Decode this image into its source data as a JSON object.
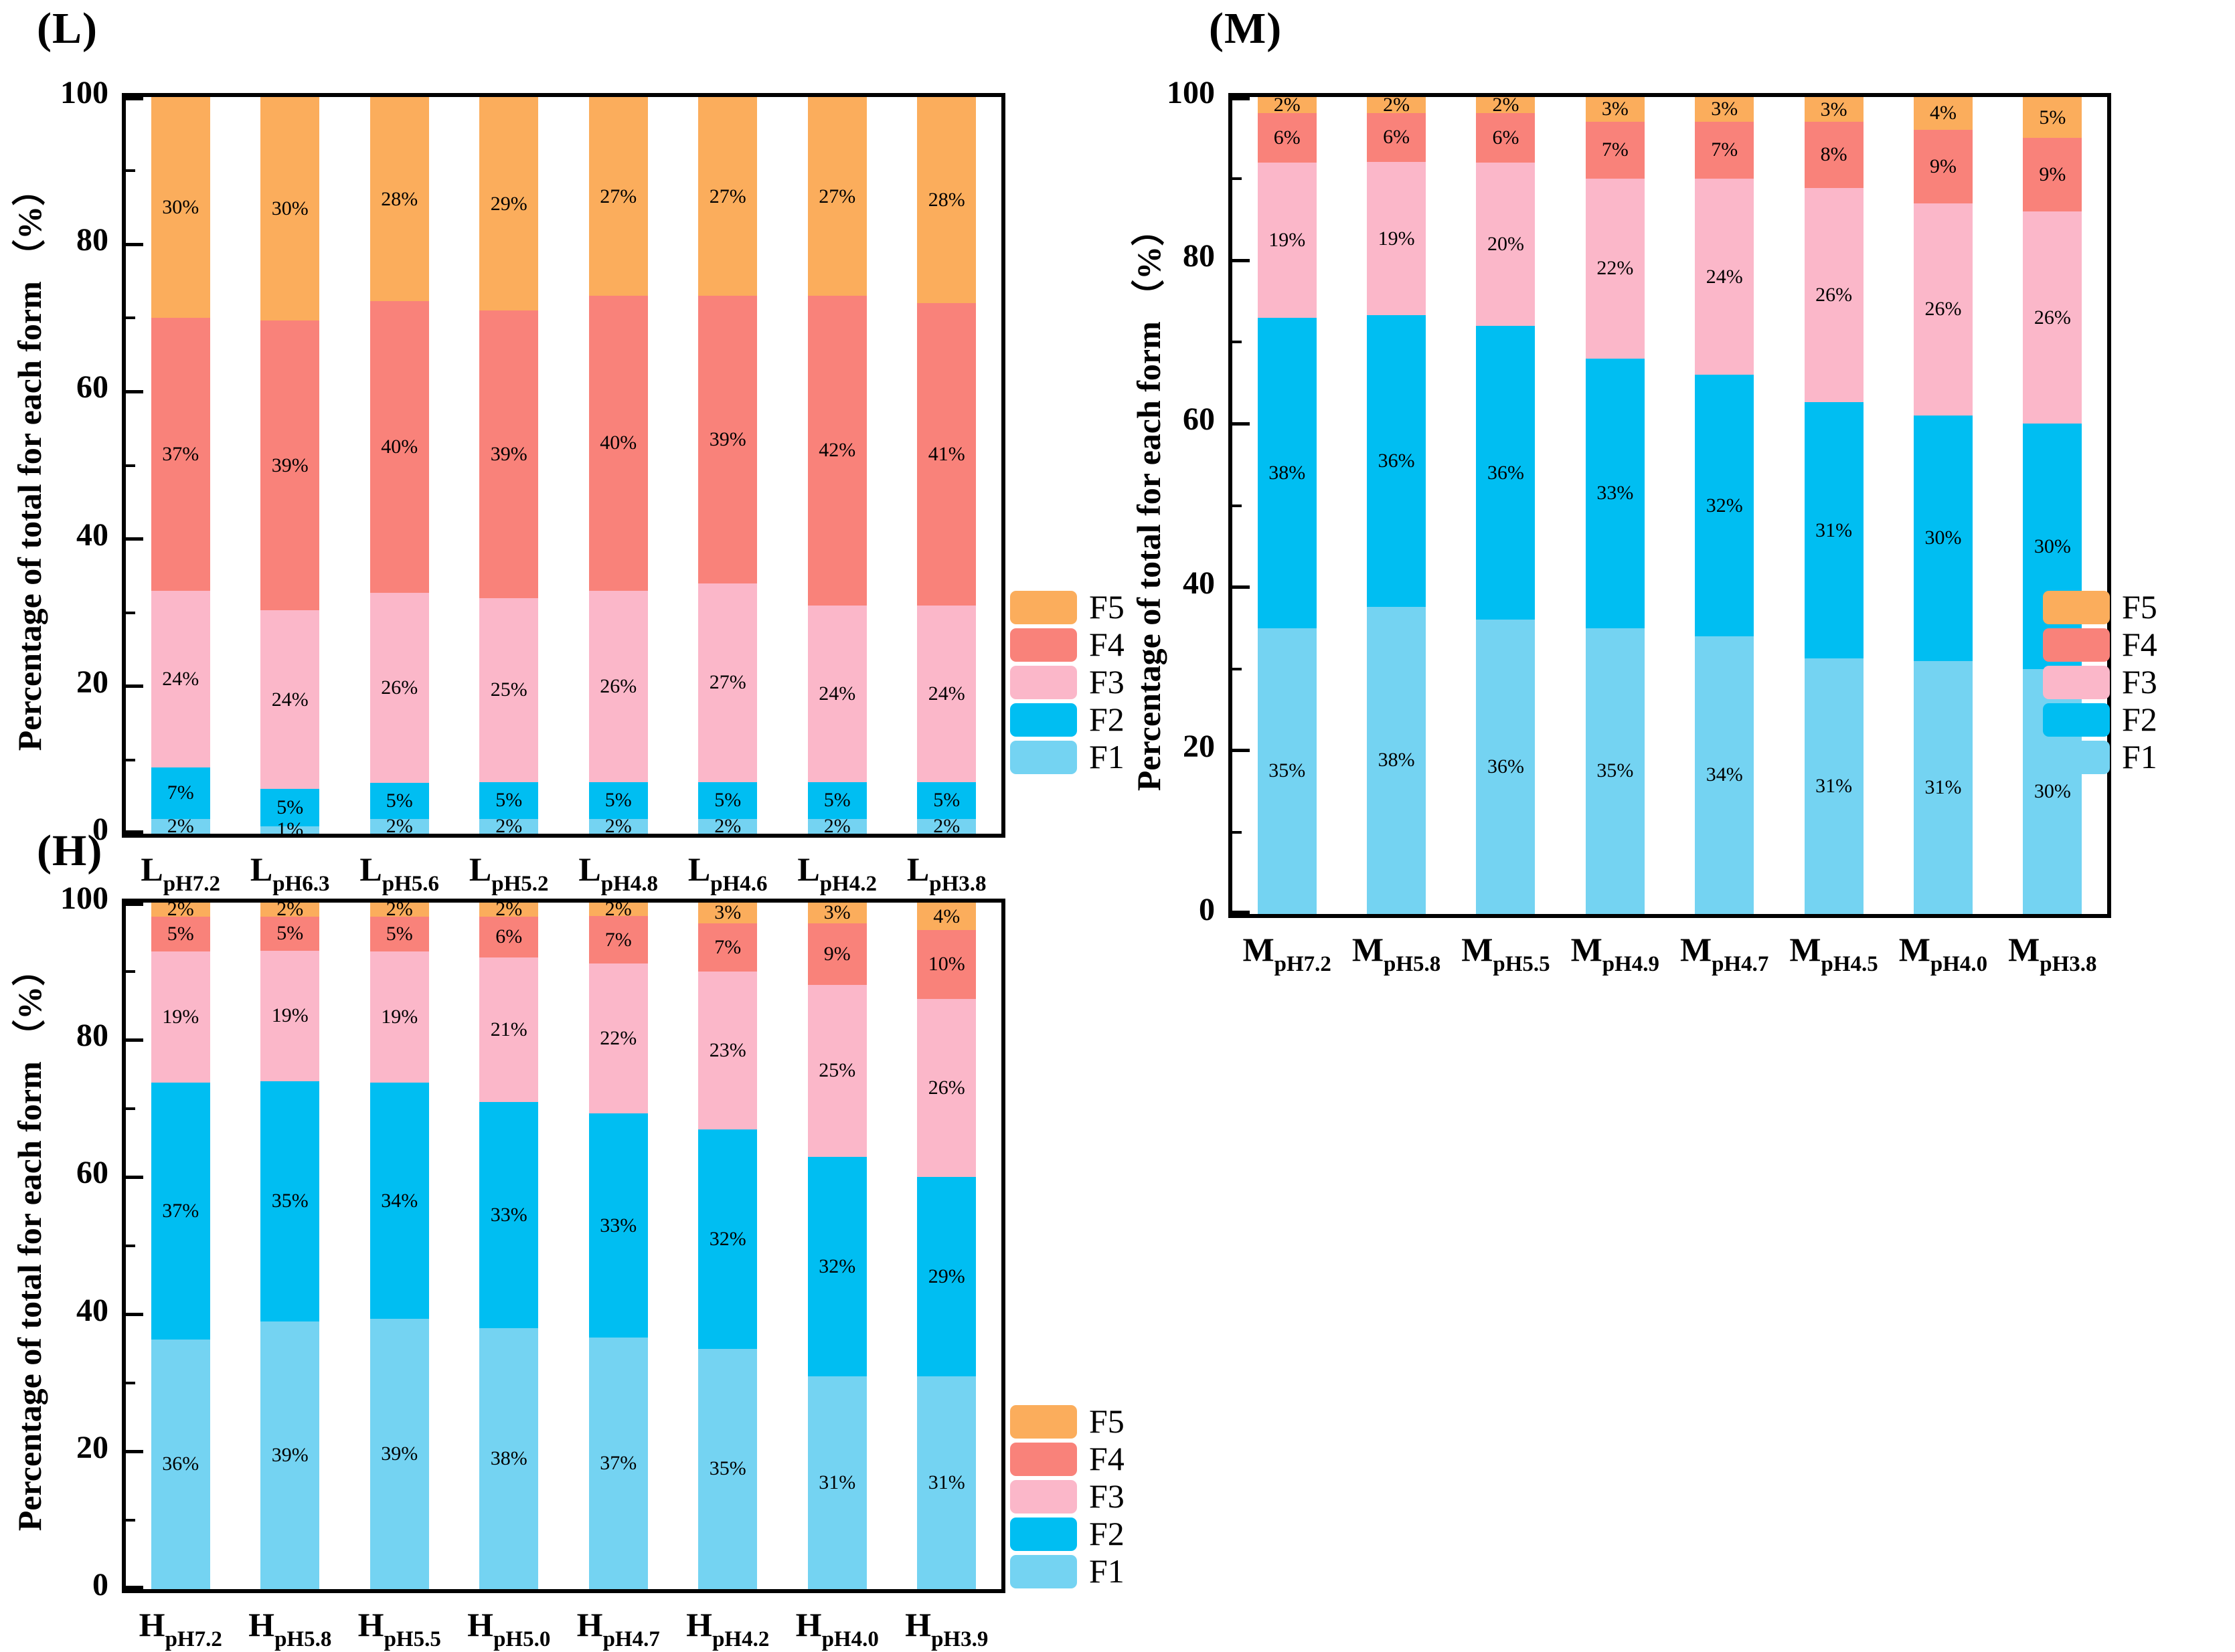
{
  "figure": {
    "background": "#ffffff",
    "axis_color": "#000000",
    "colors": {
      "F1": "#74D3F2",
      "F2": "#00BEF2",
      "F3": "#FBB7C9",
      "F4": "#F9827A",
      "F5": "#FBAD5C"
    },
    "legend_order": [
      "F5",
      "F4",
      "F3",
      "F2",
      "F1"
    ]
  },
  "chart_data": [
    {
      "type": "bar",
      "stacked": true,
      "id": "L",
      "panel_label": "(L)",
      "ylabel": "Percentage of total for each form （%）",
      "xlabel": "",
      "ylim": [
        0,
        100
      ],
      "yticks": [
        0,
        20,
        40,
        60,
        80,
        100
      ],
      "y_minor_ticks": [
        10,
        30,
        50,
        70,
        90
      ],
      "grid": false,
      "legend_position": "right-bottom",
      "legend": [
        "F5",
        "F4",
        "F3",
        "F2",
        "F1"
      ],
      "category_prefix": "L",
      "categories": [
        "pH7.2",
        "pH6.3",
        "pH5.6",
        "pH5.2",
        "pH4.8",
        "pH4.6",
        "pH4.2",
        "pH3.8"
      ],
      "series": [
        {
          "name": "F1",
          "values": [
            2,
            1,
            2,
            2,
            2,
            2,
            2,
            2
          ]
        },
        {
          "name": "F2",
          "values": [
            7,
            5,
            5,
            5,
            5,
            5,
            5,
            5
          ]
        },
        {
          "name": "F3",
          "values": [
            24,
            24,
            26,
            25,
            26,
            27,
            24,
            24
          ]
        },
        {
          "name": "F4",
          "values": [
            37,
            39,
            40,
            39,
            40,
            39,
            42,
            41
          ]
        },
        {
          "name": "F5",
          "values": [
            30,
            30,
            28,
            29,
            27,
            27,
            27,
            28
          ]
        }
      ]
    },
    {
      "type": "bar",
      "stacked": true,
      "id": "M",
      "panel_label": "(M)",
      "ylabel": "Percentage of total for each form （%）",
      "xlabel": "",
      "ylim": [
        0,
        100
      ],
      "yticks": [
        0,
        20,
        40,
        60,
        80,
        100
      ],
      "y_minor_ticks": [
        10,
        30,
        50,
        70,
        90
      ],
      "grid": false,
      "legend_position": "right-bottom",
      "legend": [
        "F5",
        "F4",
        "F3",
        "F2",
        "F1"
      ],
      "category_prefix": "M",
      "categories": [
        "pH7.2",
        "pH5.8",
        "pH5.5",
        "pH4.9",
        "pH4.7",
        "pH4.5",
        "pH4.0",
        "pH3.8"
      ],
      "series": [
        {
          "name": "F1",
          "values": [
            35,
            38,
            36,
            35,
            34,
            31,
            31,
            30
          ]
        },
        {
          "name": "F2",
          "values": [
            38,
            36,
            36,
            33,
            32,
            31,
            30,
            30
          ]
        },
        {
          "name": "F3",
          "values": [
            19,
            19,
            20,
            22,
            24,
            26,
            26,
            26
          ]
        },
        {
          "name": "F4",
          "values": [
            6,
            6,
            6,
            7,
            7,
            8,
            9,
            9
          ]
        },
        {
          "name": "F5",
          "values": [
            2,
            2,
            2,
            3,
            3,
            3,
            4,
            5
          ]
        }
      ]
    },
    {
      "type": "bar",
      "stacked": true,
      "id": "H",
      "panel_label": "(H)",
      "ylabel": "Percentage of total for each form （%）",
      "xlabel": "",
      "ylim": [
        0,
        100
      ],
      "yticks": [
        0,
        20,
        40,
        60,
        80,
        100
      ],
      "y_minor_ticks": [
        10,
        30,
        50,
        70,
        90
      ],
      "grid": false,
      "legend_position": "right-bottom",
      "legend": [
        "F5",
        "F4",
        "F3",
        "F2",
        "F1"
      ],
      "category_prefix": "H",
      "categories": [
        "pH7.2",
        "pH5.8",
        "pH5.5",
        "pH5.0",
        "pH4.7",
        "pH4.2",
        "pH4.0",
        "pH3.9"
      ],
      "series": [
        {
          "name": "F1",
          "values": [
            36,
            39,
            39,
            38,
            37,
            35,
            31,
            31
          ]
        },
        {
          "name": "F2",
          "values": [
            37,
            35,
            34,
            33,
            33,
            32,
            32,
            29
          ]
        },
        {
          "name": "F3",
          "values": [
            19,
            19,
            19,
            21,
            22,
            23,
            25,
            26
          ]
        },
        {
          "name": "F4",
          "values": [
            5,
            5,
            5,
            6,
            7,
            7,
            9,
            10
          ]
        },
        {
          "name": "F5",
          "values": [
            2,
            2,
            2,
            2,
            2,
            3,
            3,
            4
          ]
        }
      ]
    }
  ]
}
